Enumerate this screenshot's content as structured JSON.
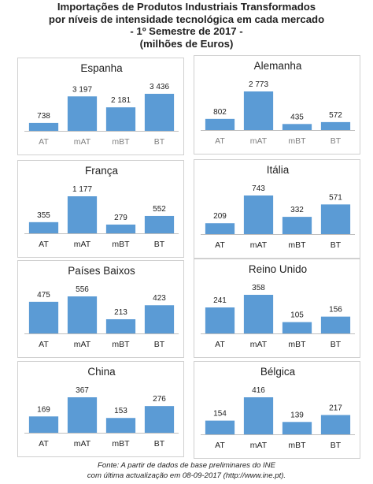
{
  "header": {
    "title_line1": "Importações de Produtos Industriais Transformados",
    "title_line2": "por níveis de intensidade tecnológica em cada mercado",
    "title_line3": "- 1º Semestre de 2017 -",
    "title_line4": "(milhões de Euros)"
  },
  "colors": {
    "bar": "#5b9bd5",
    "label_dark": "#222222",
    "label_grey": "#7f7f7f",
    "panel_border": "#d0d0d0",
    "axis_line": "#bfbfbf"
  },
  "chart_data": [
    {
      "type": "bar",
      "title": "Espanha",
      "categories": [
        "AT",
        "mAT",
        "mBT",
        "BT"
      ],
      "values": [
        738,
        3197,
        2181,
        3436
      ],
      "value_labels": [
        "738",
        "3 197",
        "2 181",
        "3 436"
      ],
      "tick_color": "grey"
    },
    {
      "type": "bar",
      "title": "Alemanha",
      "categories": [
        "AT",
        "mAT",
        "mBT",
        "BT"
      ],
      "values": [
        802,
        2773,
        435,
        572
      ],
      "value_labels": [
        "802",
        "2 773",
        "435",
        "572"
      ],
      "tick_color": "grey"
    },
    {
      "type": "bar",
      "title": "França",
      "categories": [
        "AT",
        "mAT",
        "mBT",
        "BT"
      ],
      "values": [
        355,
        1177,
        279,
        552
      ],
      "value_labels": [
        "355",
        "1 177",
        "279",
        "552"
      ],
      "tick_color": "dark"
    },
    {
      "type": "bar",
      "title": "Itália",
      "categories": [
        "AT",
        "mAT",
        "mBT",
        "BT"
      ],
      "values": [
        209,
        743,
        332,
        571
      ],
      "value_labels": [
        "209",
        "743",
        "332",
        "571"
      ],
      "tick_color": "dark"
    },
    {
      "type": "bar",
      "title": "Países Baixos",
      "categories": [
        "AT",
        "mAT",
        "mBT",
        "BT"
      ],
      "values": [
        475,
        556,
        213,
        423
      ],
      "value_labels": [
        "475",
        "556",
        "213",
        "423"
      ],
      "tick_color": "dark"
    },
    {
      "type": "bar",
      "title": "Reino Unido",
      "categories": [
        "AT",
        "mAT",
        "mBT",
        "BT"
      ],
      "values": [
        241,
        358,
        105,
        156
      ],
      "value_labels": [
        "241",
        "358",
        "105",
        "156"
      ],
      "tick_color": "dark"
    },
    {
      "type": "bar",
      "title": "China",
      "categories": [
        "AT",
        "mAT",
        "mBT",
        "BT"
      ],
      "values": [
        169,
        367,
        153,
        276
      ],
      "value_labels": [
        "169",
        "367",
        "153",
        "276"
      ],
      "tick_color": "dark"
    },
    {
      "type": "bar",
      "title": "Bélgica",
      "categories": [
        "AT",
        "mAT",
        "mBT",
        "BT"
      ],
      "values": [
        154,
        416,
        139,
        217
      ],
      "value_labels": [
        "154",
        "416",
        "139",
        "217"
      ],
      "tick_color": "dark"
    }
  ],
  "footer": {
    "source_line1": "Fonte: A partir de dados de base preliminares do INE",
    "source_line2": "com última actualização em 08-09-2017  (http://www.ine.pt)."
  }
}
